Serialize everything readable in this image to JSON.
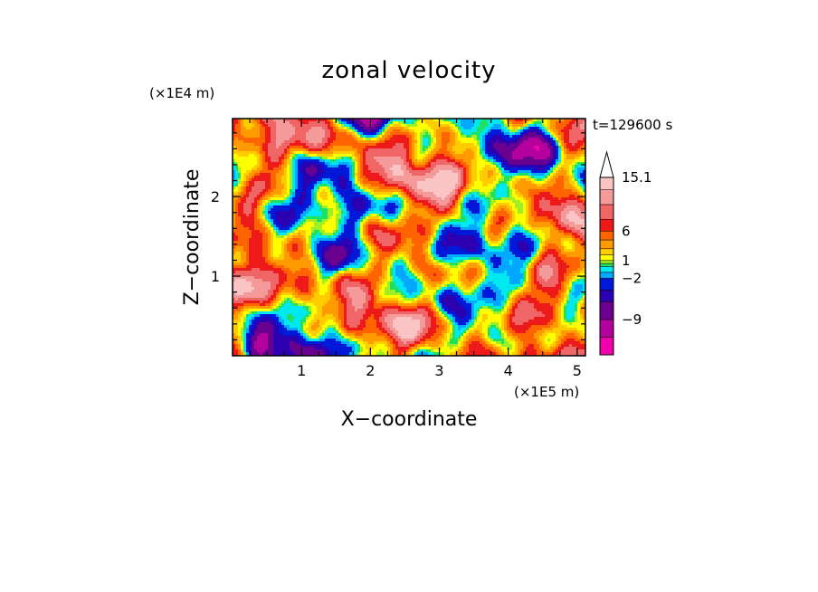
{
  "chart_data": {
    "type": "heatmap",
    "title": "zonal velocity",
    "xlabel": "X−coordinate",
    "ylabel": "Z−coordinate",
    "x_unit": "(×1E5 m)",
    "y_unit": "(×1E4 m)",
    "time_label": "t=129600 s",
    "xlim": [
      0,
      5.12
    ],
    "ylim": [
      0,
      2.98
    ],
    "x_ticks": [
      "1",
      "2",
      "3",
      "4",
      "5"
    ],
    "y_ticks": [
      "1",
      "2"
    ],
    "colorbar": {
      "labels": [
        "15.1",
        "6",
        "1",
        "−2",
        "−9"
      ],
      "label_values": [
        15.1,
        6,
        1,
        -2,
        -9
      ],
      "bands": [
        {
          "min": -15,
          "max": -12,
          "color": "#ee00aa"
        },
        {
          "min": -12,
          "max": -9,
          "color": "#b4009c"
        },
        {
          "min": -9,
          "max": -6,
          "color": "#6a0090"
        },
        {
          "min": -6,
          "max": -4,
          "color": "#2c00b0"
        },
        {
          "min": -4,
          "max": -2,
          "color": "#0018d8"
        },
        {
          "min": -2,
          "max": -1,
          "color": "#00a8ff"
        },
        {
          "min": -1,
          "max": 0,
          "color": "#00e8f0"
        },
        {
          "min": 0,
          "max": 0.5,
          "color": "#1fe060"
        },
        {
          "min": 0.5,
          "max": 1,
          "color": "#9ef026"
        },
        {
          "min": 1,
          "max": 2,
          "color": "#ffff00"
        },
        {
          "min": 2,
          "max": 3,
          "color": "#ffcc00"
        },
        {
          "min": 3,
          "max": 4.5,
          "color": "#ff9a00"
        },
        {
          "min": 4.5,
          "max": 6,
          "color": "#ff6400"
        },
        {
          "min": 6,
          "max": 8,
          "color": "#ee1a1a"
        },
        {
          "min": 8,
          "max": 10.5,
          "color": "#f06666"
        },
        {
          "min": 10.5,
          "max": 13,
          "color": "#f59a9a"
        },
        {
          "min": 13,
          "max": 15.1,
          "color": "#fac4c4"
        }
      ],
      "overflow_arrow_color": "#ffffff"
    }
  }
}
